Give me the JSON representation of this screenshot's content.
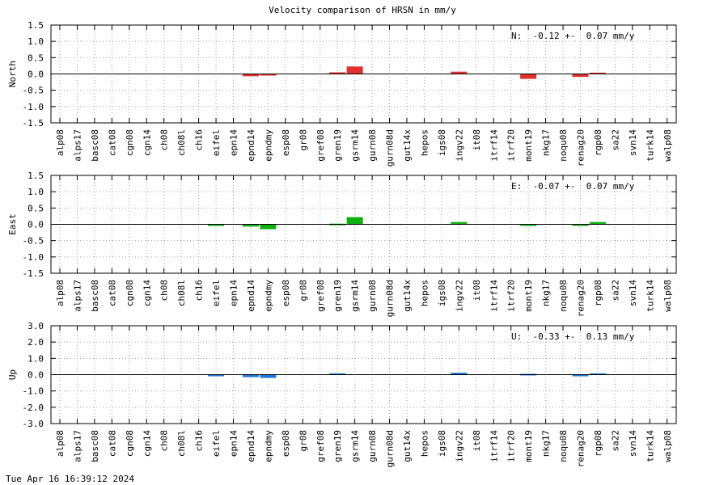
{
  "title": "Velocity comparison of HRSN in mm/y",
  "footer": "Tue Apr 16 16:39:12 2024",
  "chart_data": [
    {
      "type": "bar",
      "ylabel": "North",
      "color": "#e03030",
      "ylim": [
        -1.5,
        1.5
      ],
      "yticks": [
        -1.5,
        -1.0,
        -0.5,
        0.0,
        0.5,
        1.0,
        1.5
      ],
      "ytick_labels": [
        "-1.5",
        "-1.0",
        "-0.5",
        "0.0",
        "0.5",
        "1.0",
        "1.5"
      ],
      "annotation": "N:  -0.12 +-  0.07 mm/y",
      "grid": true,
      "categories": [
        "alp08",
        "alps17",
        "basc08",
        "cat08",
        "cgn08",
        "cgn14",
        "ch08",
        "ch08l",
        "ch16",
        "eifel",
        "epn14",
        "epnd14",
        "epndmy",
        "esp08",
        "gr08",
        "gref08",
        "gren19",
        "gsrm14",
        "gurn08",
        "gurn08d",
        "gut14x",
        "hepos",
        "igs08",
        "ingv22",
        "it08",
        "itrf14",
        "itrf20",
        "mont19",
        "nkg17",
        "noqu08",
        "renag20",
        "rgp08",
        "sa22",
        "svn14",
        "turk14",
        "walp08"
      ],
      "values": [
        null,
        null,
        null,
        null,
        null,
        null,
        null,
        null,
        null,
        null,
        null,
        -0.07,
        -0.04,
        null,
        null,
        null,
        0.05,
        0.23,
        null,
        null,
        null,
        null,
        null,
        0.07,
        null,
        null,
        null,
        -0.15,
        null,
        null,
        -0.09,
        0.04,
        null,
        null,
        null,
        null
      ]
    },
    {
      "type": "bar",
      "ylabel": "East",
      "color": "#10b010",
      "ylim": [
        -1.5,
        1.5
      ],
      "yticks": [
        -1.5,
        -1.0,
        -0.5,
        0.0,
        0.5,
        1.0,
        1.5
      ],
      "ytick_labels": [
        "-1.5",
        "-1.0",
        "-0.5",
        "0.0",
        "0.5",
        "1.0",
        "1.5"
      ],
      "annotation": "E:  -0.07 +-  0.07 mm/y",
      "grid": true,
      "categories": [
        "alp08",
        "alps17",
        "basc08",
        "cat08",
        "cgn08",
        "cgn14",
        "ch08",
        "ch08l",
        "ch16",
        "eifel",
        "epn14",
        "epnd14",
        "epndmy",
        "esp08",
        "gr08",
        "gref08",
        "gren19",
        "gsrm14",
        "gurn08",
        "gurn08d",
        "gut14x",
        "hepos",
        "igs08",
        "ingv22",
        "it08",
        "itrf14",
        "itrf20",
        "mont19",
        "nkg17",
        "noqu08",
        "renag20",
        "rgp08",
        "sa22",
        "svn14",
        "turk14",
        "walp08"
      ],
      "values": [
        null,
        null,
        null,
        null,
        null,
        null,
        null,
        null,
        null,
        -0.02,
        null,
        -0.07,
        -0.15,
        null,
        null,
        null,
        0.02,
        0.22,
        null,
        null,
        null,
        null,
        null,
        0.07,
        null,
        null,
        null,
        -0.02,
        null,
        null,
        -0.05,
        0.07,
        null,
        null,
        null,
        null
      ]
    },
    {
      "type": "bar",
      "ylabel": "Up",
      "color": "#1e78dc",
      "ylim": [
        -3.0,
        3.0
      ],
      "yticks": [
        -3.0,
        -2.0,
        -1.0,
        0.0,
        1.0,
        2.0,
        3.0
      ],
      "ytick_labels": [
        "-3.0",
        "-2.0",
        "-1.0",
        "0.0",
        "1.0",
        "2.0",
        "3.0"
      ],
      "annotation": "U:  -0.33 +-  0.13 mm/y",
      "grid": true,
      "categories": [
        "alp08",
        "alps17",
        "basc08",
        "cat08",
        "cgn08",
        "cgn14",
        "ch08",
        "ch08l",
        "ch16",
        "eifel",
        "epn14",
        "epnd14",
        "epndmy",
        "esp08",
        "gr08",
        "gref08",
        "gren19",
        "gsrm14",
        "gurn08",
        "gurn08d",
        "gut14x",
        "hepos",
        "igs08",
        "ingv22",
        "it08",
        "itrf14",
        "itrf20",
        "mont19",
        "nkg17",
        "noqu08",
        "renag20",
        "rgp08",
        "sa22",
        "svn14",
        "turk14",
        "walp08"
      ],
      "values": [
        null,
        null,
        null,
        null,
        null,
        null,
        null,
        null,
        null,
        -0.08,
        null,
        -0.15,
        -0.2,
        null,
        null,
        null,
        0.08,
        null,
        null,
        null,
        null,
        null,
        null,
        0.12,
        null,
        null,
        null,
        0.05,
        null,
        null,
        -0.1,
        0.08,
        null,
        null,
        null,
        null
      ]
    }
  ]
}
